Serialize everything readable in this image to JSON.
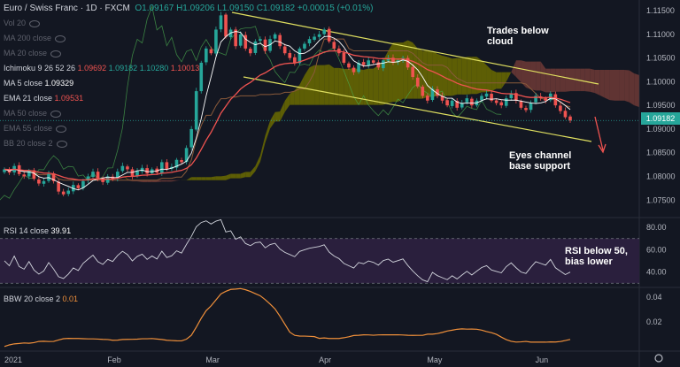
{
  "header": {
    "symbol": "Euro / Swiss Franc · 1D · FXCM",
    "ohlc": "O1.09167 H1.09206 L1.09150 C1.09182 +0.00015 (+0.01%)"
  },
  "indicators": {
    "vol": "Vol 20",
    "ma200": "MA 200 close",
    "ma20": "MA 20 close",
    "ichimoku_label": "Ichimoku 9 26 52 26",
    "ichimoku_values": [
      "1.09692",
      "1.09182",
      "1.10280",
      "1.10013"
    ],
    "ma5_label": "MA 5 close",
    "ma5_value": "1.09329",
    "ema21_label": "EMA 21 close",
    "ema21_value": "1.09531",
    "ma50": "MA 50 close",
    "ema55": "EMA 55 close",
    "bb": "BB 20 close 2"
  },
  "annotations": {
    "cloud": "Trades below\ncloud",
    "channel": "Eyes channel\nbase support",
    "rsi": "RSI below 50,\nbias lower"
  },
  "price_tag": "1.09182",
  "rsi_panel": {
    "label": "RSI 14 close",
    "value": "39.91"
  },
  "bbw_panel": {
    "label": "BBW 20 close 2",
    "value": "0.01"
  },
  "colors": {
    "up": "#26a69a",
    "down": "#ef5350",
    "ma5": "#ffffff",
    "ema21": "#ef5350",
    "cloud_bull": "#6b6b00",
    "cloud_bear": "#6e3a36",
    "channel": "#e0e060"
  },
  "chart_data": {
    "type": "candlestick",
    "y_axis": {
      "ticks": [
        1.075,
        1.08,
        1.085,
        1.09,
        1.095,
        1.1,
        1.105,
        1.11,
        1.115
      ],
      "ylim": [
        1.0715,
        1.1165
      ]
    },
    "x_ticks": [
      "2021",
      "Feb",
      "Mar",
      "Apr",
      "May",
      "Jun"
    ],
    "x_tick_index": [
      0,
      22,
      42,
      65,
      87,
      109
    ],
    "n_bars": 116,
    "close": [
      1.0815,
      1.0808,
      1.0822,
      1.0805,
      1.08,
      1.0812,
      1.0795,
      1.0785,
      1.079,
      1.0805,
      1.079,
      1.0768,
      1.0762,
      1.077,
      1.0782,
      1.0775,
      1.079,
      1.08,
      1.081,
      1.0795,
      1.0788,
      1.08,
      1.0795,
      1.081,
      1.0822,
      1.0815,
      1.08,
      1.0812,
      1.0818,
      1.0806,
      1.0815,
      1.0808,
      1.083,
      1.0815,
      1.082,
      1.0835,
      1.083,
      1.086,
      1.09,
      1.098,
      1.104,
      1.107,
      1.106,
      1.111,
      1.114,
      1.1095,
      1.111,
      1.1075,
      1.11,
      1.107,
      1.106,
      1.1085,
      1.109,
      1.1065,
      1.109,
      1.11,
      1.1075,
      1.106,
      1.105,
      1.104,
      1.107,
      1.108,
      1.109,
      1.1095,
      1.11,
      1.111,
      1.1085,
      1.107,
      1.106,
      1.104,
      1.103,
      1.102,
      1.104,
      1.1035,
      1.1045,
      1.104,
      1.103,
      1.1045,
      1.105,
      1.104,
      1.1045,
      1.105,
      1.103,
      1.101,
      1.099,
      1.097,
      1.096,
      1.0985,
      1.097,
      1.096,
      1.095,
      1.096,
      1.0945,
      1.0955,
      1.0965,
      1.095,
      1.096,
      1.097,
      1.0975,
      1.096,
      1.0955,
      1.095,
      1.0965,
      1.0975,
      1.096,
      1.0945,
      1.094,
      1.0955,
      1.097,
      1.0965,
      1.096,
      1.0975,
      1.095,
      1.0938,
      1.0925,
      1.0918
    ],
    "ma5": {
      "last": 1.09329
    },
    "ema21": {
      "last": 1.09531
    },
    "ichimoku": {
      "conversion": 1.09692,
      "base": 1.09182,
      "span_a": 1.1028,
      "span_b": 1.10013
    },
    "rsi": {
      "ticks": [
        40.0,
        60.0,
        80.0
      ],
      "ylim": [
        27,
        88
      ],
      "bands": [
        30,
        70
      ],
      "last": 39.91
    },
    "bbw": {
      "ticks": [
        0.02,
        0.04
      ],
      "ylim": [
        -0.003,
        0.047
      ],
      "last": 0.01
    }
  }
}
